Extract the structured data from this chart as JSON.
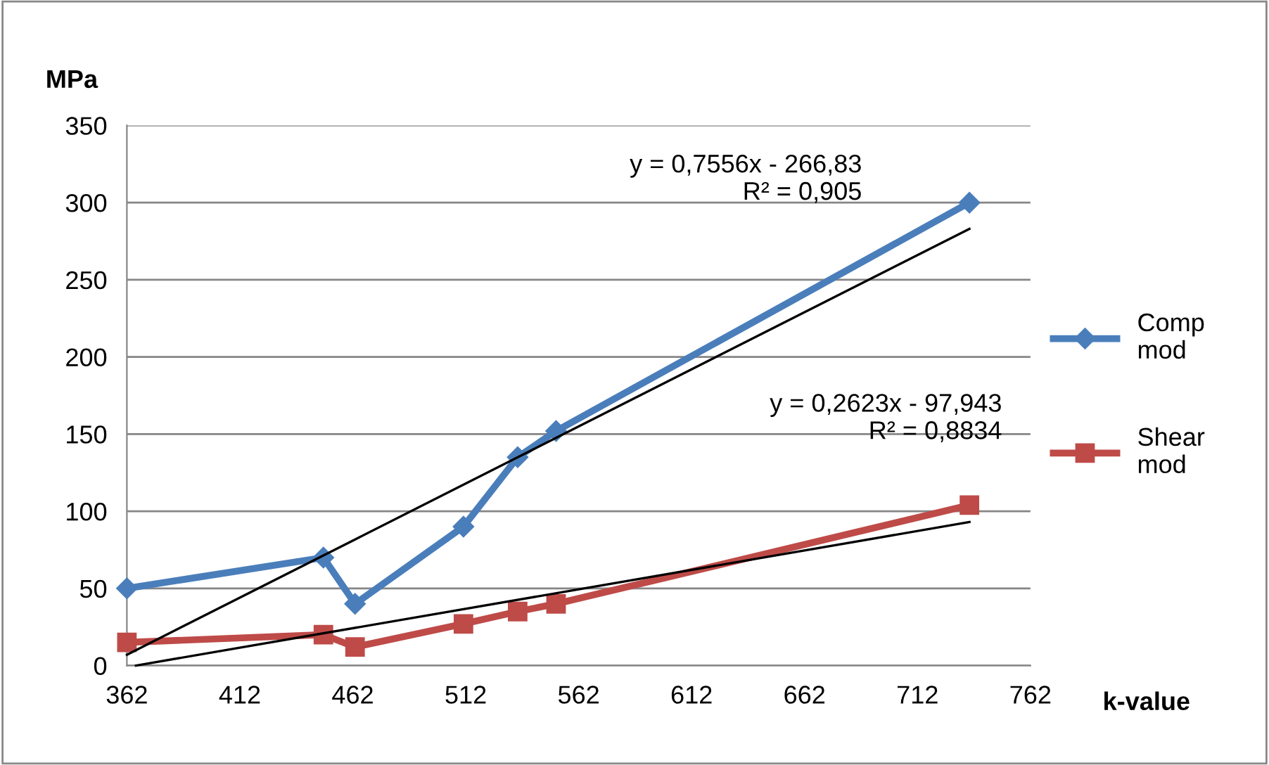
{
  "chart_data": {
    "type": "line",
    "xlabel": "k-value",
    "ylabel": "MPa",
    "x": [
      362,
      449,
      463,
      511,
      535,
      552,
      735
    ],
    "series": [
      {
        "name": "Comp\nmod",
        "color": "#4a7ebb",
        "marker": "diamond",
        "values": [
          50,
          70,
          40,
          90,
          135,
          152,
          300
        ]
      },
      {
        "name": "Shear\nmod",
        "color": "#be4b48",
        "marker": "square",
        "values": [
          15,
          20,
          12,
          27,
          35,
          40,
          104
        ]
      },
      {
        "color": "#000000",
        "x": [
          362,
          735
        ],
        "values": [
          7,
          283
        ]
      },
      {
        "color": "#000000",
        "x": [
          366,
          735
        ],
        "values": [
          0,
          93
        ]
      }
    ],
    "annotations": [
      "y = 0,7556x - 266,83\nR² = 0,905",
      "y = 0,2623x - 97,943\nR² = 0,8834"
    ],
    "xlim": [
      362,
      762
    ],
    "xticks": [
      362,
      412,
      462,
      512,
      562,
      612,
      662,
      712,
      762
    ],
    "ylim": [
      0,
      350
    ],
    "yticks": [
      0,
      50,
      100,
      150,
      200,
      250,
      300,
      350
    ],
    "grid": "y",
    "legend": "right"
  }
}
